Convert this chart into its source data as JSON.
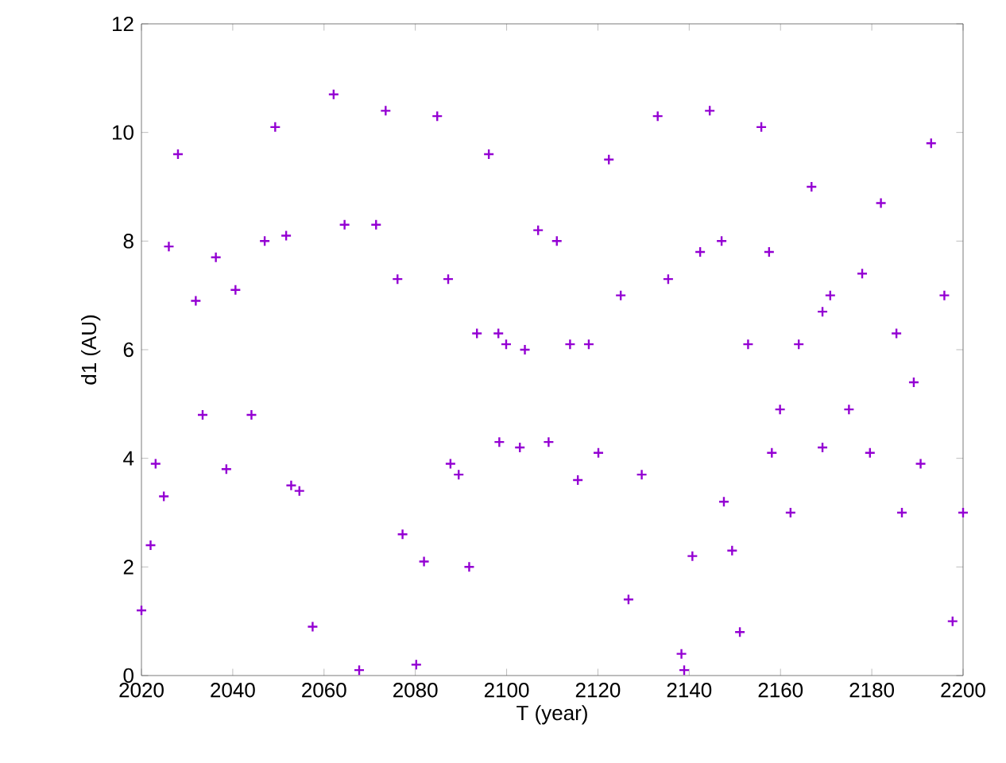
{
  "chart_data": {
    "type": "scatter",
    "xlabel": "T (year)",
    "ylabel": "d1 (AU)",
    "marker": "cross",
    "xlim": [
      2020,
      2200
    ],
    "ylim": [
      0,
      12
    ],
    "xticks": [
      2020,
      2040,
      2060,
      2080,
      2100,
      2120,
      2140,
      2160,
      2180,
      2200
    ],
    "yticks": [
      0,
      2,
      4,
      6,
      8,
      10,
      12
    ],
    "series": [
      {
        "color": "#9400d3",
        "x": [
          2020,
          2022,
          2023.1,
          2024.9,
          2026,
          2028,
          2031.9,
          2033.4,
          2036.3,
          2038.6,
          2040.6,
          2044.1,
          2047,
          2049.3,
          2051.7,
          2052.8,
          2054.6,
          2057.5,
          2062.1,
          2064.5,
          2067.7,
          2071.4,
          2073.5,
          2076.1,
          2077.2,
          2080.2,
          2081.9,
          2084.8,
          2087.2,
          2087.7,
          2089.5,
          2091.8,
          2093.5,
          2096.1,
          2098.2,
          2098.4,
          2099.9,
          2102.9,
          2104,
          2106.9,
          2109.2,
          2111,
          2113.9,
          2115.6,
          2118,
          2120.1,
          2122.4,
          2125,
          2126.7,
          2129.6,
          2133.1,
          2135.4,
          2138.3,
          2138.9,
          2140.7,
          2142.4,
          2144.5,
          2147.1,
          2147.6,
          2149.4,
          2151.1,
          2152.9,
          2155.8,
          2157.5,
          2158.1,
          2159.9,
          2162.2,
          2164,
          2166.8,
          2169.2,
          2169.2,
          2170.9,
          2175,
          2177.9,
          2179.6,
          2182,
          2185.4,
          2186.6,
          2189.2,
          2190.7,
          2193,
          2195.9,
          2197.7,
          2200
        ],
        "values": [
          1.2,
          2.4,
          3.9,
          3.3,
          7.9,
          9.6,
          6.9,
          4.8,
          7.7,
          3.8,
          7.1,
          4.8,
          8,
          10.1,
          8.1,
          3.5,
          3.4,
          0.9,
          10.7,
          8.3,
          0.1,
          8.3,
          10.4,
          7.3,
          2.6,
          0.2,
          2.1,
          10.3,
          7.3,
          3.9,
          3.7,
          2,
          6.3,
          9.6,
          6.3,
          4.3,
          6.1,
          4.2,
          6,
          8.2,
          4.3,
          8,
          6.1,
          3.6,
          6.1,
          4.1,
          9.5,
          7,
          1.4,
          3.7,
          10.3,
          7.3,
          0.4,
          0.1,
          2.2,
          7.8,
          10.4,
          8,
          3.2,
          2.3,
          0.8,
          6.1,
          10.1,
          7.8,
          4.1,
          4.9,
          3,
          6.1,
          9,
          6.7,
          4.2,
          7,
          4.9,
          7.4,
          4.1,
          8.7,
          6.3,
          3,
          5.4,
          3.9,
          9.8,
          7,
          1,
          3
        ]
      }
    ]
  }
}
